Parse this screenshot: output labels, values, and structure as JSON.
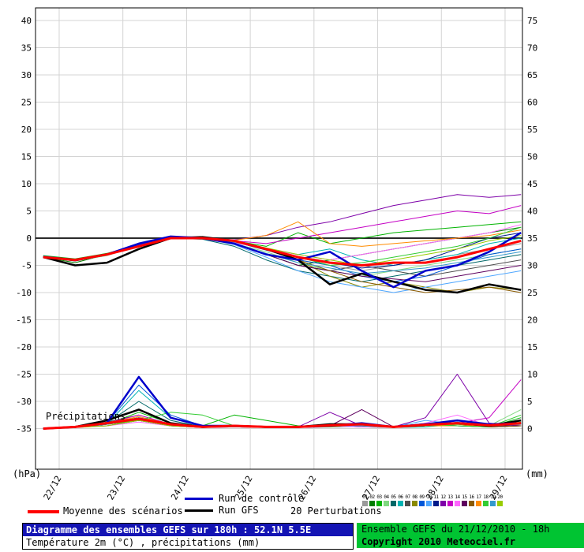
{
  "colors": {
    "title_blue": "#1414b4",
    "meteociel_green": "#00c432",
    "mean_red": "#ff0000",
    "control_blue": "#0000cc",
    "gfs_black": "#000000",
    "grid_gray": "#d4d4d4",
    "zero_line": "#2a2a2a"
  },
  "title_box": {
    "line1": "Diagramme des ensembles GEFS sur 180h : 52.1N 5.5E",
    "line2": "Température 2m (°C) , précipitations (mm)"
  },
  "info_box": {
    "line1": "Ensemble GEFS du 21/12/2010 - 18h",
    "line2": "Copyright 2010 Meteociel.fr"
  },
  "legend": {
    "mean_label": "Moyenne des scénarios",
    "control_label": "Run de contrôle",
    "gfs_label": "Run GFS",
    "perturbations_label": "20 Perturbations"
  },
  "annotations": {
    "precip_label": "Précipitations",
    "left_unit": "(hPa)",
    "right_unit": "(mm)"
  },
  "chart_data": {
    "type": "line",
    "title": "Diagramme des ensembles GEFS sur 180h : 52.1N 5.5E",
    "subtitle": "Température 2m (°C) , précipitations (mm)",
    "x_hours": [
      0,
      12,
      24,
      36,
      48,
      60,
      72,
      84,
      96,
      108,
      120,
      132,
      144,
      156,
      168,
      180
    ],
    "x_tick_hours": [
      6,
      30,
      54,
      78,
      102,
      126,
      150,
      174
    ],
    "x_tick_labels": [
      "22/12",
      "23/12",
      "24/12",
      "25/12",
      "26/12",
      "27/12",
      "28/12",
      "29/12"
    ],
    "temp_axis": {
      "unit": "(hPa)",
      "ticks": [
        40,
        35,
        30,
        25,
        20,
        15,
        10,
        5,
        0,
        -5,
        -10,
        -15,
        -20,
        -25,
        -30,
        -35
      ]
    },
    "precip_axis": {
      "unit": "(mm)",
      "ticks": [
        75,
        70,
        65,
        60,
        55,
        50,
        45,
        40,
        35,
        30,
        25,
        20,
        15,
        10,
        5,
        0
      ]
    },
    "grid": true,
    "legend_position": "bottom",
    "mean": {
      "name": "Moyenne des scénarios",
      "color": "#ff0000",
      "temp": [
        -3.5,
        -4,
        -3,
        -1.5,
        0,
        0,
        -0.5,
        -2,
        -3.5,
        -4.5,
        -5,
        -4.5,
        -4.5,
        -3.5,
        -2,
        -0.5
      ],
      "precip": [
        0,
        0.3,
        1,
        1.8,
        0.8,
        0.3,
        0.5,
        0.3,
        0.3,
        0.6,
        0.8,
        0.3,
        0.7,
        1,
        0.6,
        1
      ]
    },
    "control": {
      "name": "Run de contrôle",
      "color": "#0000cc",
      "temp": [
        -3.5,
        -4,
        -3,
        -1,
        0.3,
        0,
        -1,
        -3,
        -4,
        -2.5,
        -6,
        -9,
        -6,
        -5,
        -2.5,
        1
      ],
      "precip": [
        0,
        0.3,
        1,
        9.5,
        2,
        0.5,
        0.5,
        0.3,
        0.3,
        0.5,
        1,
        0.3,
        0.8,
        1.5,
        0.8,
        1
      ]
    },
    "gfs": {
      "name": "Run GFS",
      "color": "#000000",
      "temp": [
        -3.5,
        -5,
        -4.5,
        -2,
        0,
        0.2,
        -0.5,
        -2,
        -4,
        -8.5,
        -6.5,
        -8,
        -9.5,
        -10,
        -8.5,
        -9.5
      ],
      "precip": [
        0,
        0.3,
        1.5,
        3.5,
        1,
        0.3,
        0.5,
        0.3,
        0.3,
        0.8,
        0.8,
        0.3,
        0.8,
        1,
        0.5,
        1.5
      ]
    },
    "perturbations": [
      {
        "id": "01",
        "color": "#9a9a9a",
        "temp": [
          -3.5,
          -4,
          -3,
          -1.5,
          0,
          0,
          -0.5,
          -2,
          -4,
          -5,
          -6,
          -5,
          -4,
          -3,
          -2,
          -1
        ],
        "precip": [
          0,
          0.3,
          0.8,
          1.5,
          0.5,
          0.2,
          0.3,
          0.2,
          0.3,
          0.5,
          0.8,
          0.3,
          0.5,
          0.5,
          0.3,
          0.5
        ]
      },
      {
        "id": "02",
        "color": "#007d00",
        "temp": [
          -3.5,
          -4.5,
          -3,
          -1,
          0.2,
          0,
          -1,
          -3,
          -5,
          -4,
          -3,
          -2,
          -1,
          0,
          1,
          2
        ],
        "precip": [
          0,
          0.2,
          1,
          2,
          0.8,
          0.3,
          0.5,
          0.3,
          0.2,
          0.8,
          0.5,
          0.2,
          0.8,
          1,
          0.5,
          1
        ]
      },
      {
        "id": "03",
        "color": "#00b300",
        "temp": [
          -3.2,
          -3.8,
          -2.8,
          -1.2,
          0.3,
          0.2,
          -0.5,
          -1.5,
          1,
          -1,
          0,
          1,
          1.5,
          2,
          2.5,
          3
        ],
        "precip": [
          0,
          0.3,
          0.8,
          3,
          1,
          0.5,
          2.5,
          1.5,
          0.5,
          0.5,
          0.3,
          0.2,
          0.5,
          0.8,
          0.3,
          2
        ]
      },
      {
        "id": "04",
        "color": "#7fd87f",
        "temp": [
          -3.6,
          -4.2,
          -3.2,
          -1.4,
          0.1,
          0,
          -1,
          -2.5,
          -4.5,
          -6,
          -7,
          -6,
          -5,
          -4,
          -3,
          -2
        ],
        "precip": [
          0,
          0.2,
          0.5,
          1.5,
          0.8,
          0.2,
          0.3,
          0.2,
          0.3,
          0.3,
          0.5,
          0.3,
          0.8,
          0.5,
          0.5,
          3.5
        ]
      },
      {
        "id": "05",
        "color": "#006868",
        "temp": [
          -3.4,
          -4,
          -3,
          -1.5,
          0,
          -0.2,
          -1.5,
          -4,
          -6,
          -7,
          -8,
          -7,
          -6,
          -5,
          -4,
          -3
        ],
        "precip": [
          0,
          0.3,
          1,
          5,
          1.5,
          0.3,
          0.5,
          0.3,
          0.2,
          0.5,
          0.8,
          0.3,
          0.5,
          1,
          0.8,
          0.5
        ]
      },
      {
        "id": "06",
        "color": "#00b3b3",
        "temp": [
          -3.5,
          -4,
          -2.9,
          -1.3,
          0.2,
          0,
          -0.8,
          -2,
          -3,
          -2,
          -4,
          -5,
          -4,
          -3,
          -1,
          0
        ],
        "precip": [
          0,
          0.2,
          0.8,
          7,
          2,
          0.5,
          0.3,
          0.2,
          0.3,
          0.5,
          0.5,
          0.2,
          0.3,
          0.8,
          0.5,
          1
        ]
      },
      {
        "id": "07",
        "color": "#4d4d4d",
        "temp": [
          -3.5,
          -4.1,
          -3.1,
          -1.5,
          0,
          0,
          -1,
          -3,
          -5,
          -6,
          -5,
          -6,
          -7,
          -6,
          -5,
          -4
        ],
        "precip": [
          0,
          0.3,
          1.2,
          2.5,
          0.8,
          0.3,
          0.3,
          0.3,
          0.2,
          0.5,
          0.3,
          0.3,
          0.5,
          0.5,
          0.3,
          0.5
        ]
      },
      {
        "id": "08",
        "color": "#8a8a00",
        "temp": [
          -3.5,
          -4,
          -3,
          -1.5,
          0.1,
          0,
          -0.6,
          -2,
          -4,
          -7,
          -9,
          -8,
          -9,
          -10,
          -9,
          -9.5
        ],
        "precip": [
          0,
          0.2,
          0.8,
          1.8,
          0.5,
          0.2,
          0.5,
          0.3,
          0.3,
          0.8,
          0.5,
          0.2,
          0.8,
          0.5,
          0.5,
          0.8
        ]
      },
      {
        "id": "09",
        "color": "#0057d8",
        "temp": [
          -3.3,
          -3.9,
          -2.9,
          -1.2,
          0.2,
          0.1,
          -0.5,
          -2,
          -4,
          -5,
          -7,
          -8,
          -7,
          -5,
          -3,
          -2
        ],
        "precip": [
          0,
          0.3,
          1,
          8,
          2.5,
          0.5,
          0.5,
          0.3,
          0.2,
          0.5,
          0.5,
          0.3,
          0.5,
          1,
          0.5,
          0.8
        ]
      },
      {
        "id": "10",
        "color": "#4da6ff",
        "temp": [
          -3.5,
          -4,
          -3,
          -1.4,
          0.1,
          0,
          -1.2,
          -3.5,
          -6,
          -8,
          -9,
          -10,
          -9,
          -8,
          -7,
          -6
        ],
        "precip": [
          0,
          0.2,
          0.8,
          2,
          0.8,
          0.3,
          0.3,
          0.2,
          0.3,
          0.5,
          0.8,
          0.3,
          1.5,
          0.8,
          0.5,
          1
        ]
      },
      {
        "id": "11",
        "color": "#001a8a",
        "temp": [
          -3.5,
          -4,
          -3,
          -1.5,
          0,
          0,
          -0.7,
          -2.2,
          -3.5,
          -4.5,
          -5.5,
          -5,
          -4,
          -2,
          0,
          1
        ],
        "precip": [
          0,
          0.3,
          0.5,
          1.5,
          0.5,
          0.2,
          0.3,
          0.3,
          0.2,
          0.3,
          0.5,
          0.2,
          0.5,
          0.5,
          0.3,
          0.5
        ]
      },
      {
        "id": "12",
        "color": "#7d00a8",
        "temp": [
          -3.4,
          -4,
          -3,
          -1.3,
          0.2,
          0,
          -0.3,
          0.5,
          2,
          3,
          4.5,
          6,
          7,
          8,
          7.5,
          8
        ],
        "precip": [
          0,
          0.2,
          0.8,
          2,
          0.8,
          0.3,
          0.3,
          0.2,
          0.3,
          3,
          0.5,
          0.3,
          2,
          10,
          1,
          0.5
        ]
      },
      {
        "id": "13",
        "color": "#c400c4",
        "temp": [
          -3.5,
          -4,
          -3,
          -1.5,
          0.1,
          0,
          -0.5,
          -1,
          0,
          1,
          2,
          3,
          4,
          5,
          4.5,
          6
        ],
        "precip": [
          0,
          0.3,
          1,
          2.5,
          0.8,
          0.3,
          0.5,
          0.3,
          0.2,
          0.5,
          0.8,
          0.3,
          0.5,
          1,
          2,
          9
        ]
      },
      {
        "id": "14",
        "color": "#ff66ff",
        "temp": [
          -3.5,
          -4,
          -3,
          -1.5,
          0,
          0,
          -0.8,
          -2,
          -3,
          -4,
          -3,
          -2,
          -1,
          0,
          1,
          2.5
        ],
        "precip": [
          0,
          0.2,
          0.5,
          1.2,
          0.5,
          0.2,
          0.3,
          0.2,
          0.3,
          0.5,
          0.3,
          0.2,
          1,
          2.5,
          0.5,
          0.8
        ]
      },
      {
        "id": "15",
        "color": "#5e005e",
        "temp": [
          -3.5,
          -4.2,
          -3.1,
          -1.5,
          0,
          0,
          -1,
          -3,
          -5,
          -6,
          -7,
          -7.5,
          -8,
          -7,
          -6,
          -5
        ],
        "precip": [
          0,
          0.3,
          0.8,
          1.5,
          0.5,
          0.3,
          0.3,
          0.3,
          0.2,
          0.5,
          3.5,
          0.3,
          0.8,
          0.5,
          0.5,
          0.5
        ]
      },
      {
        "id": "16",
        "color": "#8a5a00",
        "temp": [
          -3.5,
          -4,
          -3,
          -1.5,
          0.1,
          0,
          -0.5,
          -2,
          -4,
          -6,
          -8,
          -9,
          -10,
          -9.5,
          -9,
          -10
        ],
        "precip": [
          0,
          0.2,
          0.8,
          1.8,
          0.8,
          0.3,
          0.5,
          0.3,
          0.3,
          0.5,
          0.5,
          0.2,
          0.5,
          0.8,
          0.3,
          0.5
        ]
      },
      {
        "id": "17",
        "color": "#ff8c00",
        "temp": [
          -3.4,
          -3.9,
          -2.9,
          -1.4,
          0.2,
          0,
          -0.4,
          0.5,
          3,
          -1,
          -1.5,
          -1,
          -0.5,
          0,
          0.5,
          1.5
        ],
        "precip": [
          0,
          0.3,
          1,
          2.2,
          0.8,
          0.3,
          0.3,
          0.2,
          0.2,
          0.5,
          0.8,
          0.3,
          0.5,
          0.5,
          0.5,
          0.8
        ]
      },
      {
        "id": "18",
        "color": "#33cc33",
        "temp": [
          -3.5,
          -4,
          -3,
          -1.5,
          0,
          0,
          -0.7,
          -2,
          -3.5,
          -5,
          -4.5,
          -3.5,
          -2.5,
          -1.5,
          0,
          2
        ],
        "precip": [
          0,
          0.2,
          0.8,
          1.5,
          3,
          2.5,
          0.5,
          0.3,
          0.3,
          0.5,
          0.5,
          0.2,
          0.8,
          0.5,
          0.3,
          2.5
        ]
      },
      {
        "id": "19",
        "color": "#3399cc",
        "temp": [
          -3.5,
          -4,
          -3,
          -1.5,
          0,
          -0.1,
          -1,
          -2.8,
          -4.5,
          -5.5,
          -6.5,
          -6,
          -5.5,
          -4.5,
          -3.5,
          -2.5
        ],
        "precip": [
          0,
          0.3,
          0.8,
          2,
          0.8,
          0.3,
          0.3,
          0.3,
          0.2,
          0.5,
          0.5,
          0.3,
          0.5,
          1.2,
          0.5,
          0.8
        ]
      },
      {
        "id": "20",
        "color": "#99cc00",
        "temp": [
          -3.5,
          -4,
          -3,
          -1.5,
          0.1,
          0,
          -0.5,
          -1.8,
          -3,
          -4,
          -5,
          -4,
          -3,
          -2,
          -0.5,
          0.5
        ],
        "precip": [
          0,
          0.2,
          0.5,
          1.5,
          0.5,
          0.2,
          0.5,
          0.2,
          0.3,
          0.3,
          0.8,
          0.2,
          0.5,
          0.8,
          0.5,
          1.2
        ]
      }
    ]
  }
}
